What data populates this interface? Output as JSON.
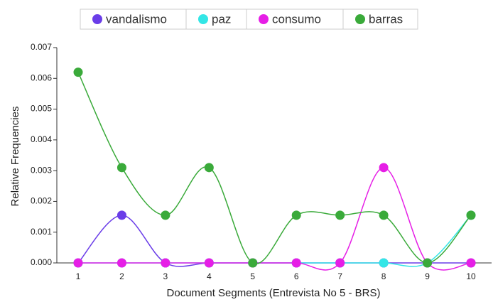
{
  "chart_data": {
    "type": "line",
    "x_label": "Document Segments (Entrevista No 5 - BRS)",
    "y_label": "Relative Frequencies",
    "categories": [
      "1",
      "2",
      "3",
      "4",
      "5",
      "6",
      "7",
      "8",
      "9",
      "10"
    ],
    "series": [
      {
        "name": "vandalismo",
        "color": "#6a3de8",
        "values": [
          0,
          0.00155,
          0,
          0,
          0,
          0,
          0,
          0,
          0,
          0
        ]
      },
      {
        "name": "paz",
        "color": "#33e6e6",
        "values": [
          0,
          0,
          0,
          0,
          0,
          0,
          0,
          0,
          0,
          0.00155
        ]
      },
      {
        "name": "consumo",
        "color": "#e61ee6",
        "values": [
          0,
          0,
          0,
          0,
          0,
          0,
          0,
          0.0031,
          0,
          0
        ]
      },
      {
        "name": "barras",
        "color": "#3aaa3a",
        "values": [
          0.0062,
          0.0031,
          0.00155,
          0.0031,
          0,
          0.00155,
          0.00155,
          0.00155,
          0,
          0.00155
        ]
      }
    ],
    "ylim": [
      0,
      0.007
    ],
    "yticks": [
      {
        "value": 0,
        "label": "0.000"
      },
      {
        "value": 0.001,
        "label": "0.001"
      },
      {
        "value": 0.002,
        "label": "0.002"
      },
      {
        "value": 0.003,
        "label": "0.003"
      },
      {
        "value": 0.004,
        "label": "0.004"
      },
      {
        "value": 0.005,
        "label": "0.005"
      },
      {
        "value": 0.006,
        "label": "0.006"
      },
      {
        "value": 0.007,
        "label": "0.007"
      }
    ]
  }
}
